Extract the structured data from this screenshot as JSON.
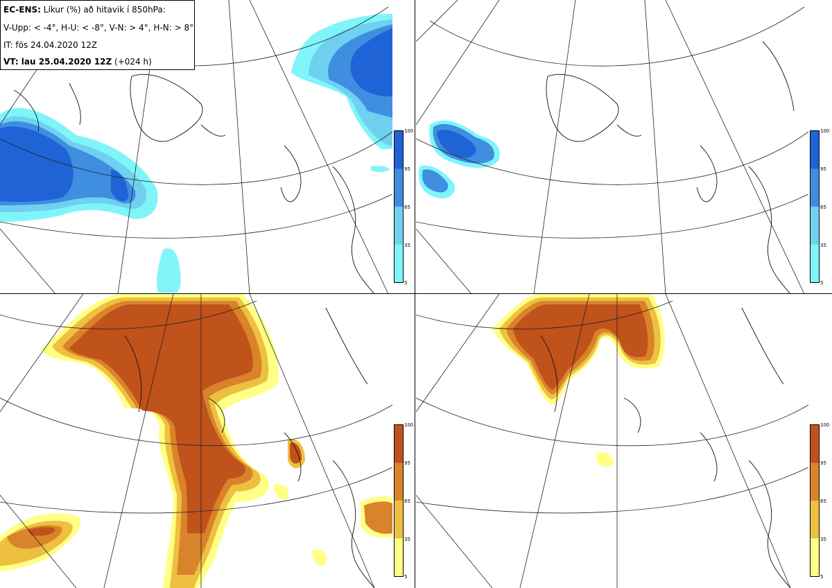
{
  "header": {
    "model": "EC-ENS:",
    "title": "Líkur (%) að hitavik í 850hPa:",
    "thresholds": "V-Upp: < -4°, H-U: < -8°, V-N: > 4°, H-N: > 8°",
    "initial_time": "IT: fös 24.04.2020 12Z",
    "valid_label": "VT: lau 25.04.2020 12Z",
    "lead": "(+024 h)"
  },
  "colorbar_ticks": [
    "100",
    "95",
    "65",
    "35",
    "5"
  ],
  "colors": {
    "cold_high": "#1f63d6",
    "cold_mid": "#3f8ee0",
    "cold_low": "#6fd0f0",
    "cold_min": "#7ff5fa",
    "warm_high": "#c0521c",
    "warm_mid": "#d9832a",
    "warm_low": "#eec040",
    "warm_min": "#ffff86"
  },
  "panels": [
    {
      "id": "cold-4",
      "colormap": "blue"
    },
    {
      "id": "cold-8",
      "colormap": "blue"
    },
    {
      "id": "warm-4",
      "colormap": "warm"
    },
    {
      "id": "warm-8",
      "colormap": "warm"
    }
  ]
}
